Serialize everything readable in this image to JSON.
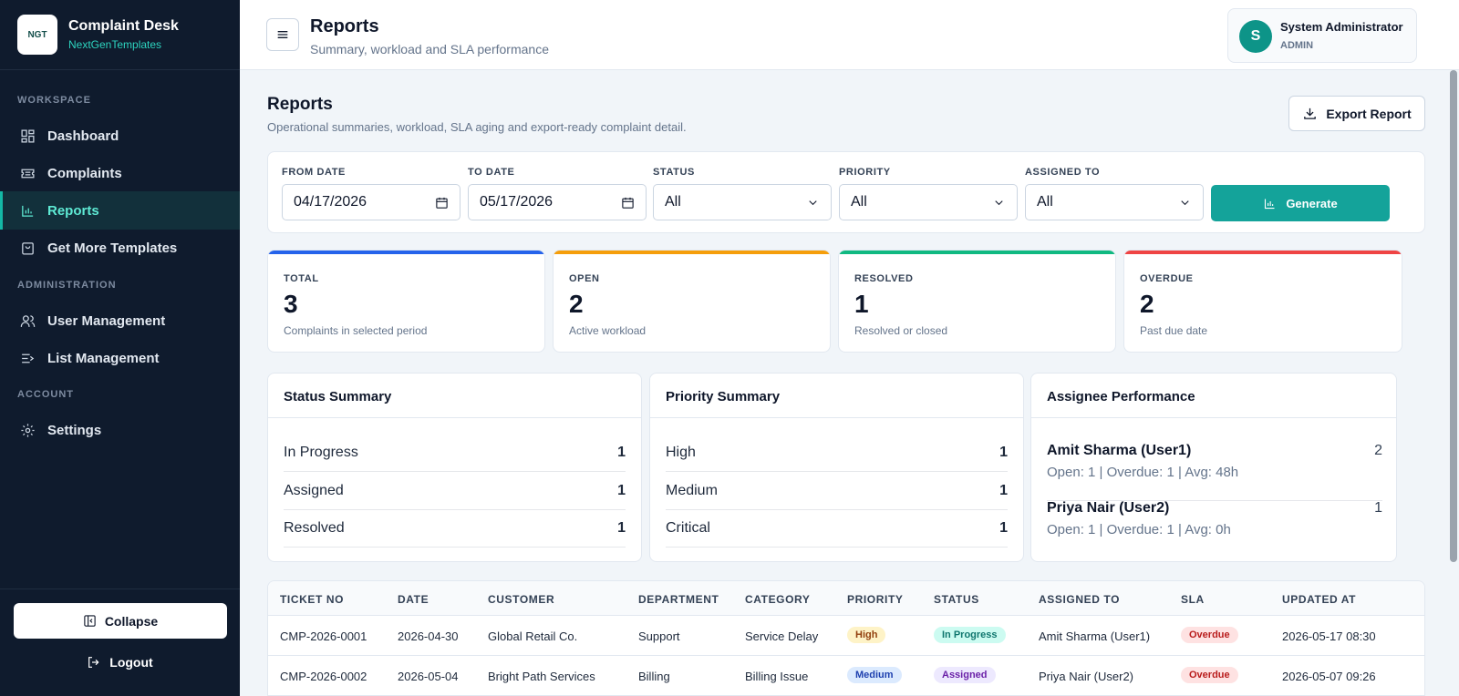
{
  "sidebar": {
    "brand_title": "Complaint Desk",
    "brand_sub": "NextGenTemplates",
    "logo_text": "NGT",
    "sections": [
      "WORKSPACE",
      "ADMINISTRATION",
      "ACCOUNT"
    ],
    "items": [
      {
        "label": "Dashboard",
        "icon": "dashboard-icon"
      },
      {
        "label": "Complaints",
        "icon": "ticket-icon"
      },
      {
        "label": "Reports",
        "icon": "bar-chart-icon",
        "active": true
      },
      {
        "label": "Get More Templates",
        "icon": "bag-icon"
      },
      {
        "label": "User Management",
        "icon": "users-icon"
      },
      {
        "label": "List Management",
        "icon": "list-icon"
      },
      {
        "label": "Settings",
        "icon": "gear-icon"
      }
    ],
    "collapse_label": "Collapse",
    "logout_label": "Logout"
  },
  "topbar": {
    "title": "Reports",
    "subtitle": "Summary, workload and SLA performance",
    "user_initial": "S",
    "user_name": "System Administrator",
    "user_role": "ADMIN"
  },
  "page": {
    "title": "Reports",
    "subtitle": "Operational summaries, workload, SLA aging and export-ready complaint detail.",
    "export_label": "Export Report"
  },
  "filters": {
    "from_label": "FROM DATE",
    "from_value": "04/17/2026",
    "to_label": "TO DATE",
    "to_value": "05/17/2026",
    "status_label": "STATUS",
    "status_value": "All",
    "priority_label": "PRIORITY",
    "priority_value": "All",
    "assigned_label": "ASSIGNED TO",
    "assigned_value": "All",
    "generate_label": "Generate"
  },
  "stats": [
    {
      "label": "TOTAL",
      "value": "3",
      "desc": "Complaints in selected period",
      "color": "#2563eb"
    },
    {
      "label": "OPEN",
      "value": "2",
      "desc": "Active workload",
      "color": "#f59e0b"
    },
    {
      "label": "RESOLVED",
      "value": "1",
      "desc": "Resolved or closed",
      "color": "#10b981"
    },
    {
      "label": "OVERDUE",
      "value": "2",
      "desc": "Past due date",
      "color": "#ef4444"
    }
  ],
  "status_summary": {
    "title": "Status Summary",
    "rows": [
      {
        "label": "In Progress",
        "count": "1"
      },
      {
        "label": "Assigned",
        "count": "1"
      },
      {
        "label": "Resolved",
        "count": "1"
      }
    ]
  },
  "priority_summary": {
    "title": "Priority Summary",
    "rows": [
      {
        "label": "High",
        "count": "1"
      },
      {
        "label": "Medium",
        "count": "1"
      },
      {
        "label": "Critical",
        "count": "1"
      }
    ]
  },
  "assignee": {
    "title": "Assignee Performance",
    "rows": [
      {
        "name": "Amit Sharma (User1)",
        "detail": "Open: 1 | Overdue: 1 | Avg: 48h",
        "count": "2"
      },
      {
        "name": "Priya Nair (User2)",
        "detail": "Open: 1 | Overdue: 1 | Avg: 0h",
        "count": "1"
      }
    ]
  },
  "table": {
    "headers": [
      "TICKET NO",
      "DATE",
      "CUSTOMER",
      "DEPARTMENT",
      "CATEGORY",
      "PRIORITY",
      "STATUS",
      "ASSIGNED TO",
      "SLA",
      "UPDATED AT"
    ],
    "rows": [
      {
        "ticket": "CMP-2026-0001",
        "date": "2026-04-30",
        "customer": "Global Retail Co.",
        "department": "Support",
        "category": "Service Delay",
        "priority": "High",
        "status": "In Progress",
        "assigned": "Amit Sharma (User1)",
        "sla": "Overdue",
        "updated": "2026-05-17 08:30"
      },
      {
        "ticket": "CMP-2026-0002",
        "date": "2026-05-04",
        "customer": "Bright Path Services",
        "department": "Billing",
        "category": "Billing Issue",
        "priority": "Medium",
        "status": "Assigned",
        "assigned": "Priya Nair (User2)",
        "sla": "Overdue",
        "updated": "2026-05-07 09:26"
      }
    ]
  },
  "colors": {
    "accent": "#14a39a",
    "pill_high_bg": "#fef3c7",
    "pill_high_fg": "#92400e",
    "pill_medium_bg": "#dbeafe",
    "pill_medium_fg": "#1e40af",
    "pill_inprogress_bg": "#ccfbf1",
    "pill_inprogress_fg": "#0f766e",
    "pill_assigned_bg": "#ede9fe",
    "pill_assigned_fg": "#6b21a8",
    "pill_overdue_bg": "#fee2e2",
    "pill_overdue_fg": "#b91c1c"
  }
}
